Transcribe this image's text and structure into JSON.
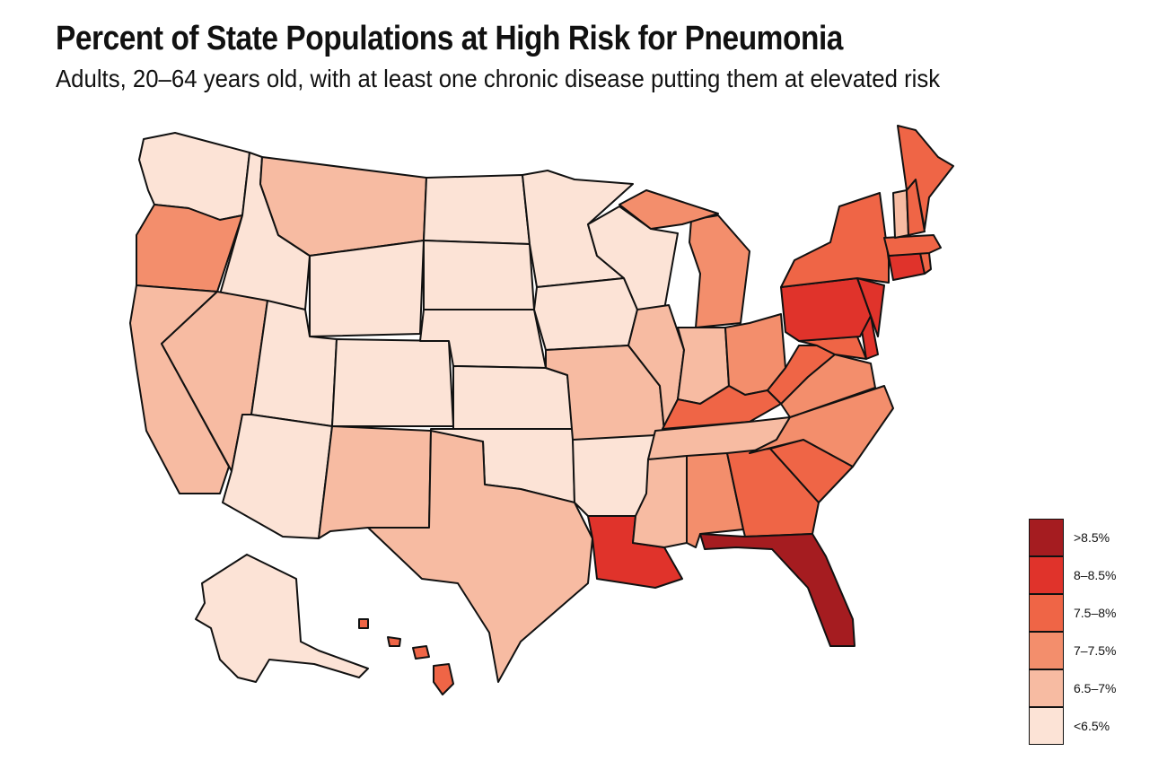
{
  "title": "Percent of State Populations at High Risk for Pneumonia",
  "subtitle": "Adults, 20–64 years old, with at least one chronic disease putting them at elevated risk",
  "legend": [
    {
      "label": ">8.5%",
      "color": "#a51c20"
    },
    {
      "label": "8–8.5%",
      "color": "#e0332b"
    },
    {
      "label": "7.5–8%",
      "color": "#ef6546"
    },
    {
      "label": "7–7.5%",
      "color": "#f38e6c"
    },
    {
      "label": "6.5–7%",
      "color": "#f7bba2"
    },
    {
      "label": "<6.5%",
      "color": "#fce3d6"
    }
  ],
  "states": [
    {
      "id": "WA",
      "tier": 5
    },
    {
      "id": "OR",
      "tier": 3
    },
    {
      "id": "CA",
      "tier": 4
    },
    {
      "id": "ID",
      "tier": 5
    },
    {
      "id": "NV",
      "tier": 4
    },
    {
      "id": "MT",
      "tier": 4
    },
    {
      "id": "WY",
      "tier": 5
    },
    {
      "id": "UT",
      "tier": 5
    },
    {
      "id": "AZ",
      "tier": 5
    },
    {
      "id": "CO",
      "tier": 5
    },
    {
      "id": "NM",
      "tier": 4
    },
    {
      "id": "ND",
      "tier": 5
    },
    {
      "id": "SD",
      "tier": 5
    },
    {
      "id": "NE",
      "tier": 5
    },
    {
      "id": "KS",
      "tier": 5
    },
    {
      "id": "OK",
      "tier": 5
    },
    {
      "id": "TX",
      "tier": 4
    },
    {
      "id": "MN",
      "tier": 5
    },
    {
      "id": "IA",
      "tier": 5
    },
    {
      "id": "MO",
      "tier": 4
    },
    {
      "id": "AR",
      "tier": 5
    },
    {
      "id": "LA",
      "tier": 1
    },
    {
      "id": "WI",
      "tier": 5
    },
    {
      "id": "IL",
      "tier": 4
    },
    {
      "id": "MI",
      "tier": 3
    },
    {
      "id": "IN",
      "tier": 4
    },
    {
      "id": "OH",
      "tier": 3
    },
    {
      "id": "KY",
      "tier": 2
    },
    {
      "id": "TN",
      "tier": 4
    },
    {
      "id": "MS",
      "tier": 4
    },
    {
      "id": "AL",
      "tier": 3
    },
    {
      "id": "GA",
      "tier": 2
    },
    {
      "id": "FL",
      "tier": 0
    },
    {
      "id": "SC",
      "tier": 2
    },
    {
      "id": "NC",
      "tier": 3
    },
    {
      "id": "VA",
      "tier": 3
    },
    {
      "id": "WV",
      "tier": 2
    },
    {
      "id": "MD",
      "tier": 2
    },
    {
      "id": "DE",
      "tier": 1
    },
    {
      "id": "PA",
      "tier": 1
    },
    {
      "id": "NJ",
      "tier": 1
    },
    {
      "id": "NY",
      "tier": 2
    },
    {
      "id": "CT",
      "tier": 1
    },
    {
      "id": "RI",
      "tier": 2
    },
    {
      "id": "MA",
      "tier": 2
    },
    {
      "id": "VT",
      "tier": 4
    },
    {
      "id": "NH",
      "tier": 2
    },
    {
      "id": "ME",
      "tier": 2
    },
    {
      "id": "AK",
      "tier": 5
    },
    {
      "id": "HI",
      "tier": 2
    }
  ]
}
